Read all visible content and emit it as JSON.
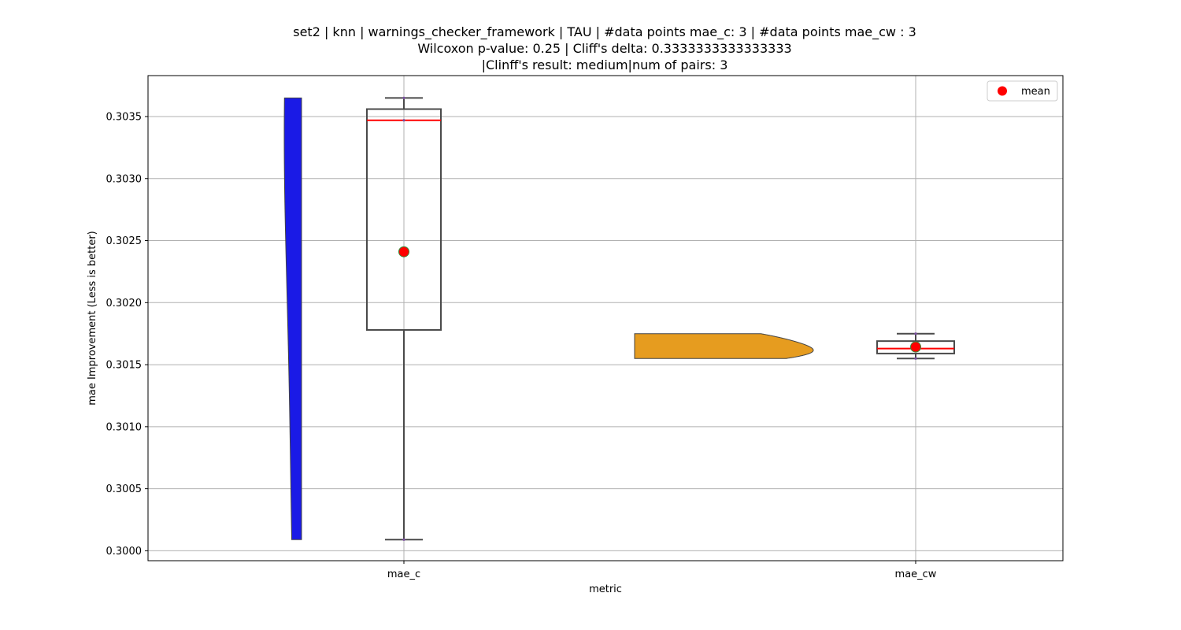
{
  "chart_data": {
    "type": "violin+box",
    "title": [
      "set2 | knn | warnings_checker_framework | TAU | #data points mae_c: 3 | #data points mae_cw : 3",
      "Wilcoxon p-value: 0.25 | Cliff's delta: 0.3333333333333333",
      "|Clinff's result: medium|num of pairs: 3"
    ],
    "xlabel": "metric",
    "ylabel": "mae Improvement (Less is better)",
    "categories": [
      "mae_c",
      "mae_cw"
    ],
    "ylim": [
      0.29992,
      0.30383
    ],
    "yticks": [
      0.3,
      0.3005,
      0.301,
      0.3015,
      0.302,
      0.3025,
      0.303,
      0.3035
    ],
    "ytick_labels": [
      "0.3000",
      "0.3005",
      "0.3010",
      "0.3015",
      "0.3020",
      "0.3025",
      "0.3030",
      "0.3035"
    ],
    "grid": true,
    "legend": {
      "placement": "top-right",
      "entries": [
        {
          "label": "mean",
          "marker": "circle",
          "color": "#ff0000"
        }
      ]
    },
    "colors": {
      "mae_c_violin": "#1a1ae6",
      "mae_cw_violin": "#e69c1f",
      "median": "#ff0000",
      "mean": "#ff0000",
      "box_edge": "#4a4a4a"
    },
    "series": [
      {
        "category": "mae_c",
        "points": [
          0.30009,
          0.30347,
          0.30365
        ],
        "box": {
          "whisker_low": 0.30009,
          "q1": 0.30178,
          "median": 0.30347,
          "q3": 0.30356,
          "whisker_high": 0.30365
        },
        "mean": 0.30241,
        "violin_color": "#1a1ae6"
      },
      {
        "category": "mae_cw",
        "points": [
          0.30155,
          0.30163,
          0.30175
        ],
        "box": {
          "whisker_low": 0.30155,
          "q1": 0.30159,
          "median": 0.30163,
          "q3": 0.30169,
          "whisker_high": 0.30175
        },
        "mean": 0.301643,
        "violin_color": "#e69c1f"
      }
    ]
  }
}
